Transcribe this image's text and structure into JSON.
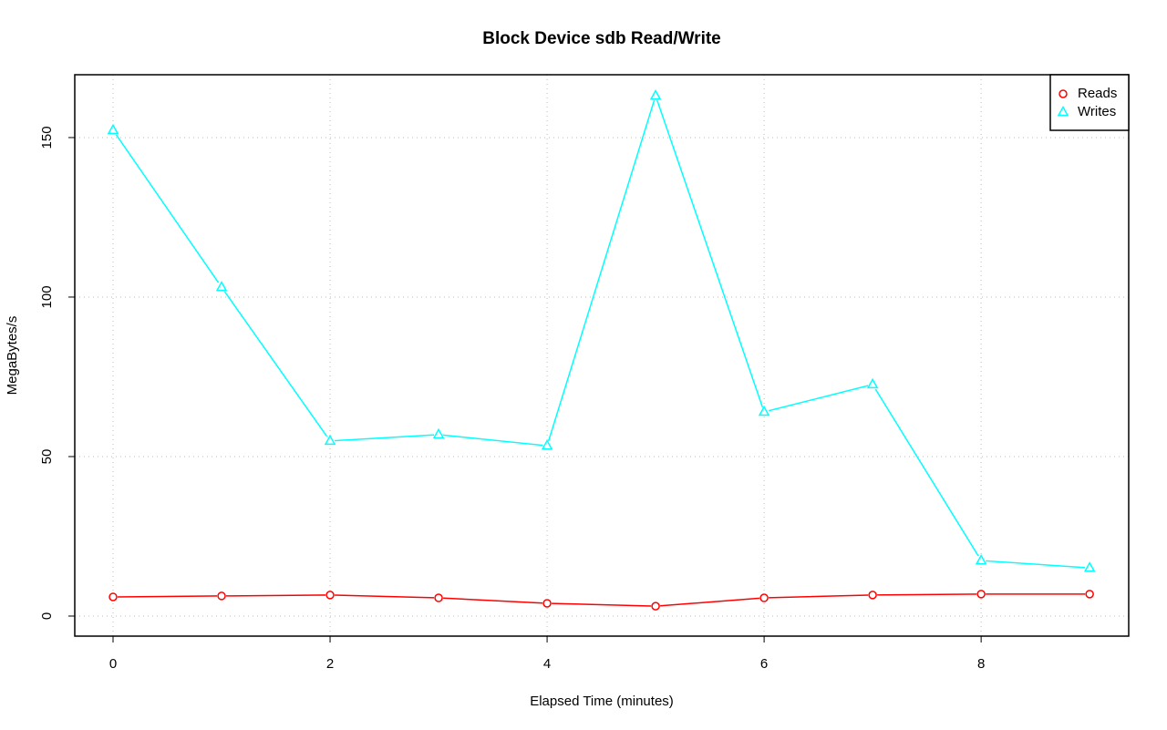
{
  "chart_data": {
    "type": "line",
    "title": "Block Device sdb Read/Write",
    "x_label": "Elapsed Time (minutes)",
    "y_label": "MegaBytes/s",
    "x": [
      0,
      1,
      2,
      3,
      4,
      5,
      6,
      7,
      8,
      9
    ],
    "series": [
      {
        "name": "Reads",
        "color": "#ff0000",
        "marker": "circle",
        "values": [
          6,
          6.3,
          6.6,
          5.7,
          4,
          3.1,
          5.7,
          6.6,
          6.9,
          6.9
        ]
      },
      {
        "name": "Writes",
        "color": "#00ffff",
        "marker": "triangle",
        "values": [
          152.3,
          103.1,
          54.9,
          56.9,
          53.4,
          163.1,
          64,
          72.6,
          17.4,
          15.1
        ]
      }
    ],
    "xlim": [
      -0.353,
      9.36
    ],
    "ylim": [
      -6.29,
      169.7
    ],
    "xticks": [
      0,
      2,
      4,
      6,
      8
    ],
    "yticks": [
      0,
      50,
      100,
      150
    ],
    "grid": true,
    "legend": "top-right"
  }
}
